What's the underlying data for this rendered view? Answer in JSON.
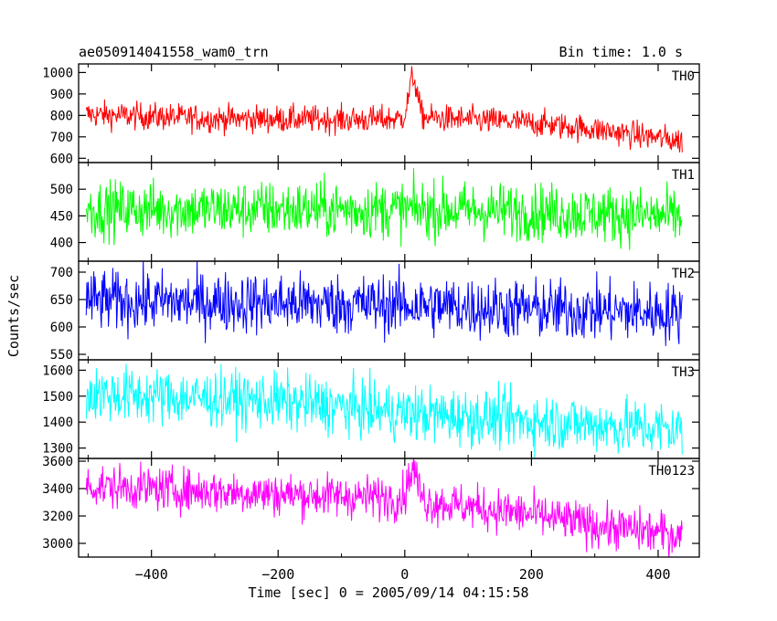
{
  "chart_data": {
    "type": "line",
    "title": "ae050914041558_wam0_trn",
    "subtitle": "Bin time: 1.0 s",
    "xlabel": "Time [sec] 0 = 2005/09/14 04:15:58",
    "ylabel": "Counts/sec",
    "xlim": [
      -515,
      465
    ],
    "x_ticks": [
      -400,
      -200,
      0,
      200,
      400
    ],
    "x_tick_labels": [
      "−400",
      "−200",
      "0",
      "200",
      "400"
    ],
    "x_start": -503,
    "x_end": 438,
    "x_step": 1,
    "panels": [
      {
        "name": "TH0",
        "color": "#ff0000",
        "ylim": [
          580,
          1040
        ],
        "y_ticks": [
          600,
          700,
          800,
          900,
          1000
        ],
        "trend": [
          [
            -503,
            805
          ],
          [
            -300,
            785
          ],
          [
            -60,
            780
          ],
          [
            0,
            785
          ],
          [
            30,
            790
          ],
          [
            200,
            765
          ],
          [
            300,
            735
          ],
          [
            438,
            680
          ]
        ],
        "noise": 32,
        "peak": {
          "x": 13,
          "height": 190,
          "width": 9
        }
      },
      {
        "name": "TH1",
        "color": "#00ff00",
        "ylim": [
          365,
          550
        ],
        "y_ticks": [
          400,
          450,
          500
        ],
        "trend": [
          [
            -503,
            462
          ],
          [
            0,
            462
          ],
          [
            200,
            458
          ],
          [
            438,
            448
          ]
        ],
        "noise": 27,
        "peak": null
      },
      {
        "name": "TH2",
        "color": "#0000ff",
        "ylim": [
          540,
          720
        ],
        "y_ticks": [
          550,
          600,
          650,
          700
        ],
        "trend": [
          [
            -503,
            648
          ],
          [
            0,
            640
          ],
          [
            200,
            632
          ],
          [
            438,
            625
          ]
        ],
        "noise": 28,
        "peak": null
      },
      {
        "name": "TH3",
        "color": "#00ffff",
        "ylim": [
          1260,
          1640
        ],
        "y_ticks": [
          1300,
          1400,
          1500,
          1600
        ],
        "trend": [
          [
            -503,
            1510
          ],
          [
            -200,
            1480
          ],
          [
            0,
            1435
          ],
          [
            200,
            1405
          ],
          [
            438,
            1370
          ]
        ],
        "noise": 55,
        "peak": null
      },
      {
        "name": "TH0123",
        "color": "#ff00ff",
        "ylim": [
          2900,
          3620
        ],
        "y_ticks": [
          3000,
          3200,
          3400,
          3600
        ],
        "trend": [
          [
            -503,
            3420
          ],
          [
            -200,
            3360
          ],
          [
            0,
            3330
          ],
          [
            30,
            3310
          ],
          [
            200,
            3210
          ],
          [
            300,
            3130
          ],
          [
            438,
            3060
          ]
        ],
        "noise": 80,
        "peak": {
          "x": 13,
          "height": 220,
          "width": 10
        }
      }
    ]
  }
}
